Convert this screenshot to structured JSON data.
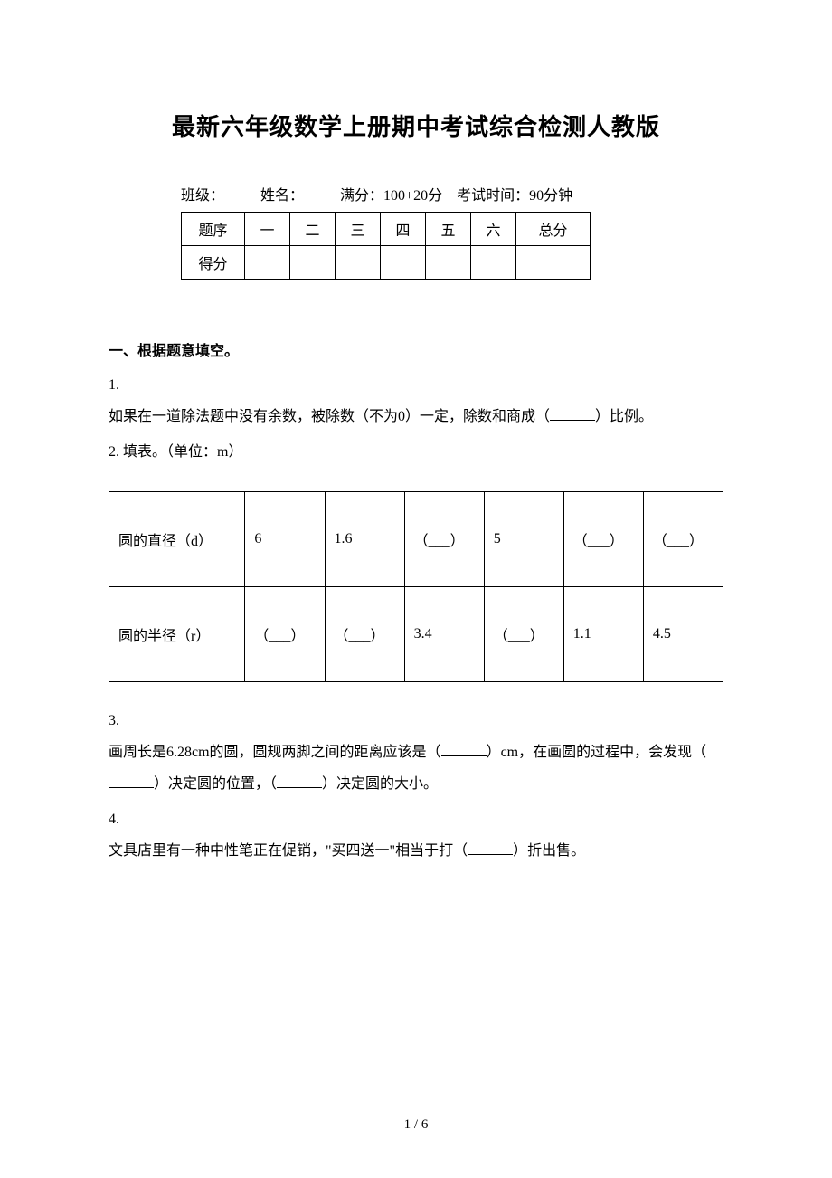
{
  "title": "最新六年级数学上册期中考试综合检测人教版",
  "info": {
    "class_label": "班级：",
    "name_label": "姓名：",
    "full_score_label": "满分：",
    "full_score_value": "100+20分",
    "exam_time_label": "考试时间：",
    "exam_time_value": "90分钟"
  },
  "score_table": {
    "row1": "题序",
    "row2": "得分",
    "cols": [
      "一",
      "二",
      "三",
      "四",
      "五",
      "六"
    ],
    "total": "总分"
  },
  "section1": {
    "heading": "一、根据题意填空。",
    "q1_num": "1.",
    "q1_text_a": "如果在一道除法题中没有余数，被除数（不为0）一定，除数和商成（",
    "q1_text_b": "）比例。",
    "q2_num": "2.",
    "q2_text": "填表。（单位：m）",
    "table": {
      "row1_label": "圆的直径（d）",
      "row1_cells": [
        "6",
        "1.6",
        "（___）",
        "5",
        "（___）",
        "（___）"
      ],
      "row2_label": "圆的半径（r）",
      "row2_cells": [
        "（___）",
        "（___）",
        "3.4",
        "（___）",
        "1.1",
        "4.5"
      ]
    },
    "q3_num": "3.",
    "q3_text_a": "画周长是6.28cm的圆，圆规两脚之间的距离应该是（",
    "q3_text_b": "）cm，在画圆的过程中，会发现（",
    "q3_text_c": "）决定圆的位置，（",
    "q3_text_d": "）决定圆的大小。",
    "q4_num": "4.",
    "q4_text_a": "文具店里有一种中性笔正在促销，\"买四送一\"相当于打（",
    "q4_text_b": "）折出售。"
  },
  "page_number": "1 / 6"
}
